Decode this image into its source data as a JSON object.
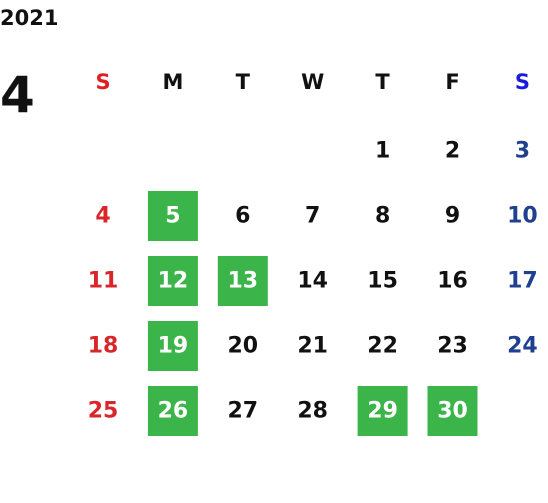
{
  "calendar": {
    "year": "2021",
    "month": "4",
    "weekdays": [
      "S",
      "M",
      "T",
      "W",
      "T",
      "F",
      "S"
    ],
    "weekday_colors": [
      "#e02020",
      "#111111",
      "#111111",
      "#111111",
      "#111111",
      "#111111",
      "#1a1adf"
    ],
    "day_colors": [
      "#d8262a",
      "#111111",
      "#111111",
      "#111111",
      "#111111",
      "#111111",
      "#1f3f8f"
    ],
    "weeks": [
      [
        null,
        null,
        null,
        null,
        1,
        2,
        3
      ],
      [
        4,
        5,
        6,
        7,
        8,
        9,
        10
      ],
      [
        11,
        12,
        13,
        14,
        15,
        16,
        17
      ],
      [
        18,
        19,
        20,
        21,
        22,
        23,
        24
      ],
      [
        25,
        26,
        27,
        28,
        29,
        30,
        null
      ]
    ],
    "highlighted_dates": [
      5,
      12,
      13,
      19,
      26,
      29,
      30
    ],
    "highlight_color": "#3bb44a",
    "highlight_text_color": "#ffffff"
  }
}
